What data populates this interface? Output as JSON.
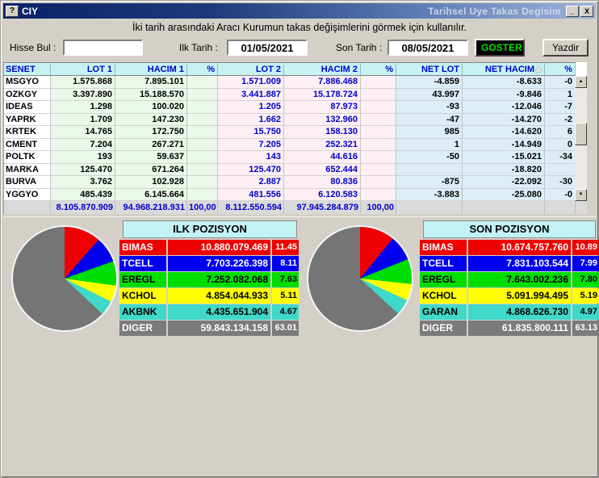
{
  "window": {
    "title": "CIY",
    "subtitle": "Tarihsel Uye Takas Degisim",
    "help_icon": "?",
    "minimize_icon": "_",
    "close_icon": "X"
  },
  "info_text": "İki tarih arasındaki Aracı Kurumun takas değişimlerini görmek için kullanılır.",
  "controls": {
    "hisse_bul_label": "Hisse Bul :",
    "hisse_bul_value": "",
    "ilk_tarih_label": "Ilk Tarih :",
    "ilk_tarih_value": "01/05/2021",
    "son_tarih_label": "Son Tarih :",
    "son_tarih_value": "08/05/2021",
    "goster_label": "GOSTER",
    "yazdir_label": "Yazdir"
  },
  "table": {
    "columns": [
      "SENET",
      "LOT 1",
      "HACIM 1",
      "%",
      "LOT 2",
      "HACIM 2",
      "%",
      "NET LOT",
      "NET HACIM",
      "%"
    ],
    "rows": [
      [
        "MSGYO",
        "1.575.868",
        "7.895.101",
        "",
        "1.571.009",
        "7.886.468",
        "",
        "-4.859",
        "-8.633",
        "-0"
      ],
      [
        "OZKGY",
        "3.397.890",
        "15.188.570",
        "",
        "3.441.887",
        "15.178.724",
        "",
        "43.997",
        "-9.846",
        "1"
      ],
      [
        "IDEAS",
        "1.298",
        "100.020",
        "",
        "1.205",
        "87.973",
        "",
        "-93",
        "-12.046",
        "-7"
      ],
      [
        "YAPRK",
        "1.709",
        "147.230",
        "",
        "1.662",
        "132.960",
        "",
        "-47",
        "-14.270",
        "-2"
      ],
      [
        "KRTEK",
        "14.765",
        "172.750",
        "",
        "15.750",
        "158.130",
        "",
        "985",
        "-14.620",
        "6"
      ],
      [
        "CMENT",
        "7.204",
        "267.271",
        "",
        "7.205",
        "252.321",
        "",
        "1",
        "-14.949",
        "0"
      ],
      [
        "POLTK",
        "193",
        "59.637",
        "",
        "143",
        "44.616",
        "",
        "-50",
        "-15.021",
        "-34"
      ],
      [
        "MARKA",
        "125.470",
        "671.264",
        "",
        "125.470",
        "652.444",
        "",
        "",
        "-18.820",
        ""
      ],
      [
        "BURVA",
        "3.762",
        "102.928",
        "",
        "2.887",
        "80.836",
        "",
        "-875",
        "-22.092",
        "-30"
      ],
      [
        "YGGYO",
        "485.439",
        "6.145.664",
        "",
        "481.556",
        "6.120.583",
        "",
        "-3.883",
        "-25.080",
        "-0"
      ]
    ],
    "totals": [
      "",
      "8.105.870.909",
      "94.968.218.931",
      "100,00",
      "8.112.550.594",
      "97.945.284.879",
      "100,00",
      "",
      "",
      ""
    ]
  },
  "positions": {
    "ilk": {
      "title": "ILK POZISYON",
      "rows": [
        {
          "label": "BIMAS",
          "value": "10.880.079.469",
          "pct": "11.45",
          "color": "red"
        },
        {
          "label": "TCELL",
          "value": "7.703.226.398",
          "pct": "8.11",
          "color": "blue"
        },
        {
          "label": "EREGL",
          "value": "7.252.082.068",
          "pct": "7.63",
          "color": "green"
        },
        {
          "label": "KCHOL",
          "value": "4.854.044.933",
          "pct": "5.11",
          "color": "yellow"
        },
        {
          "label": "AKBNK",
          "value": "4.435.651.904",
          "pct": "4.67",
          "color": "teal"
        },
        {
          "label": "DIGER",
          "value": "59.843.134.158",
          "pct": "63.01",
          "color": "gray"
        }
      ]
    },
    "son": {
      "title": "SON POZISYON",
      "rows": [
        {
          "label": "BIMAS",
          "value": "10.674.757.760",
          "pct": "10.89",
          "color": "red"
        },
        {
          "label": "TCELL",
          "value": "7.831.103.544",
          "pct": "7.99",
          "color": "blue"
        },
        {
          "label": "EREGL",
          "value": "7.643.002.236",
          "pct": "7.80",
          "color": "green"
        },
        {
          "label": "KCHOL",
          "value": "5.091.994.495",
          "pct": "5.19",
          "color": "yellow"
        },
        {
          "label": "GARAN",
          "value": "4.868.626.730",
          "pct": "4.97",
          "color": "teal"
        },
        {
          "label": "DIGER",
          "value": "61.835.800.111",
          "pct": "63.13",
          "color": "gray"
        }
      ]
    }
  },
  "chart_data": [
    {
      "type": "pie",
      "title": "ILK POZISYON",
      "labels": [
        "BIMAS",
        "TCELL",
        "EREGL",
        "KCHOL",
        "AKBNK",
        "DIGER"
      ],
      "values": [
        11.45,
        8.11,
        7.63,
        5.11,
        4.67,
        63.01
      ],
      "colors": [
        "#ee0000",
        "#0000ee",
        "#00dd00",
        "#ffff00",
        "#40d8c8",
        "#757575"
      ],
      "start_angle_deg": 0,
      "direction": "clockwise",
      "legend_position": "right-table"
    },
    {
      "type": "pie",
      "title": "SON POZISYON",
      "labels": [
        "BIMAS",
        "TCELL",
        "EREGL",
        "KCHOL",
        "GARAN",
        "DIGER"
      ],
      "values": [
        10.89,
        7.99,
        7.8,
        5.19,
        4.97,
        63.13
      ],
      "colors": [
        "#ee0000",
        "#0000ee",
        "#00dd00",
        "#ffff00",
        "#40d8c8",
        "#757575"
      ],
      "start_angle_deg": 0,
      "direction": "clockwise",
      "legend_position": "right-table"
    }
  ],
  "colors": {
    "red": "#ee0000",
    "blue": "#0000ee",
    "green": "#00dd00",
    "yellow": "#ffff00",
    "teal": "#40d8c8",
    "gray": "#7b7b7b",
    "header_bg": "#c6f2f4",
    "header_fg": "#0000cc",
    "group1_bg": "#eaf8ea",
    "group2_bg": "#fdeff4",
    "group3_bg": "#dcedf8",
    "totals_bg": "#dadada",
    "titlebar_left": "#0a2268",
    "titlebar_right": "#9db4d8",
    "goster_bg": "#000000",
    "goster_fg": "#00dd00",
    "chrome": "#d4d0c8"
  }
}
